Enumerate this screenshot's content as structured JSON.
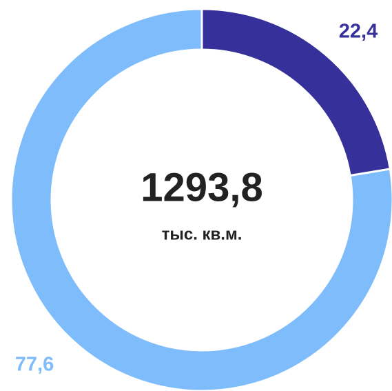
{
  "chart_data": {
    "type": "pie",
    "donut": true,
    "values": [
      22.4,
      77.6
    ],
    "value_labels": [
      "22,4",
      "77,6"
    ],
    "colors": [
      "#35309a",
      "#7fbcfb"
    ],
    "annotations": [
      "1293,8",
      "тыс. кв.м."
    ]
  }
}
